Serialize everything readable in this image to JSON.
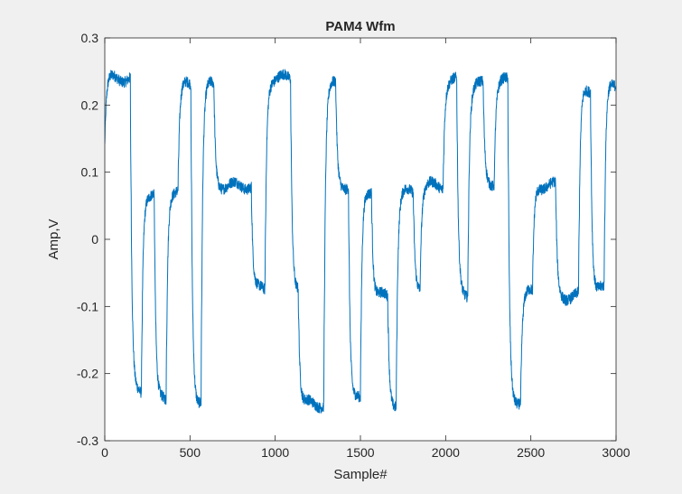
{
  "chart_data": {
    "type": "line",
    "title": "PAM4 Wfm",
    "xlabel": "Sample#",
    "ylabel": "Amp,V",
    "xlim": [
      0,
      3000
    ],
    "ylim": [
      -0.3,
      0.3
    ],
    "xticks": [
      0,
      500,
      1000,
      1500,
      2000,
      2500,
      3000
    ],
    "xtick_labels": [
      "0",
      "500",
      "1000",
      "1500",
      "2000",
      "2500",
      "3000"
    ],
    "yticks": [
      -0.3,
      -0.2,
      -0.1,
      0,
      0.1,
      0.2,
      0.3
    ],
    "ytick_labels": [
      "-0.3",
      "-0.2",
      "-0.1",
      "0",
      "0.1",
      "0.2",
      "0.3"
    ],
    "grid": false,
    "line_color": "#0072bd",
    "series": [
      {
        "levels_approx": [
          -0.24,
          -0.08,
          0.08,
          0.24
        ],
        "segments": [
          {
            "start": 0,
            "end": 150,
            "level": 0.24
          },
          {
            "start": 150,
            "end": 215,
            "level": -0.23
          },
          {
            "start": 215,
            "end": 290,
            "level": 0.07
          },
          {
            "start": 290,
            "end": 360,
            "level": -0.24
          },
          {
            "start": 360,
            "end": 430,
            "level": 0.075
          },
          {
            "start": 430,
            "end": 505,
            "level": 0.23
          },
          {
            "start": 505,
            "end": 565,
            "level": -0.24
          },
          {
            "start": 565,
            "end": 640,
            "level": 0.23
          },
          {
            "start": 640,
            "end": 860,
            "level": 0.08
          },
          {
            "start": 860,
            "end": 940,
            "level": -0.075
          },
          {
            "start": 940,
            "end": 1090,
            "level": 0.24
          },
          {
            "start": 1090,
            "end": 1135,
            "level": -0.07
          },
          {
            "start": 1135,
            "end": 1285,
            "level": -0.245
          },
          {
            "start": 1285,
            "end": 1355,
            "level": 0.23
          },
          {
            "start": 1355,
            "end": 1430,
            "level": 0.08
          },
          {
            "start": 1430,
            "end": 1500,
            "level": -0.24
          },
          {
            "start": 1500,
            "end": 1565,
            "level": 0.075
          },
          {
            "start": 1565,
            "end": 1660,
            "level": -0.085
          },
          {
            "start": 1660,
            "end": 1710,
            "level": -0.245
          },
          {
            "start": 1710,
            "end": 1810,
            "level": 0.07
          },
          {
            "start": 1810,
            "end": 1850,
            "level": -0.07
          },
          {
            "start": 1850,
            "end": 1985,
            "level": 0.08
          },
          {
            "start": 1985,
            "end": 2065,
            "level": 0.235
          },
          {
            "start": 2065,
            "end": 2130,
            "level": -0.08
          },
          {
            "start": 2130,
            "end": 2220,
            "level": 0.23
          },
          {
            "start": 2220,
            "end": 2285,
            "level": 0.085
          },
          {
            "start": 2285,
            "end": 2365,
            "level": 0.235
          },
          {
            "start": 2365,
            "end": 2440,
            "level": -0.24
          },
          {
            "start": 2440,
            "end": 2510,
            "level": -0.08
          },
          {
            "start": 2510,
            "end": 2645,
            "level": 0.08
          },
          {
            "start": 2645,
            "end": 2780,
            "level": -0.085
          },
          {
            "start": 2780,
            "end": 2850,
            "level": 0.225
          },
          {
            "start": 2850,
            "end": 2930,
            "level": -0.075
          },
          {
            "start": 2930,
            "end": 3000,
            "level": 0.235
          }
        ]
      }
    ]
  }
}
